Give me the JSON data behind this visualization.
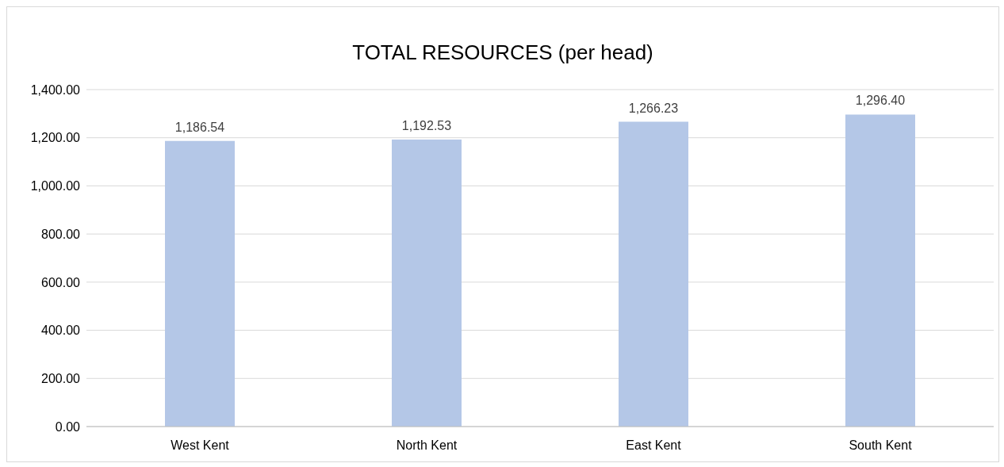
{
  "chart_data": {
    "type": "bar",
    "title": "TOTAL RESOURCES (per head)",
    "categories": [
      "West Kent",
      "North Kent",
      "East Kent",
      "South Kent"
    ],
    "values": [
      1186.54,
      1192.53,
      1266.23,
      1296.4
    ],
    "value_labels": [
      "1,186.54",
      "1,192.53",
      "1,266.23",
      "1,296.40"
    ],
    "color": "#b4c7e7",
    "ylim": [
      0,
      1400
    ],
    "yticks": [
      {
        "value": 0,
        "label": "0.00"
      },
      {
        "value": 200,
        "label": "200.00"
      },
      {
        "value": 400,
        "label": "400.00"
      },
      {
        "value": 600,
        "label": "600.00"
      },
      {
        "value": 800,
        "label": "800.00"
      },
      {
        "value": 1000,
        "label": "1,000.00"
      },
      {
        "value": 1200,
        "label": "1,200.00"
      },
      {
        "value": 1400,
        "label": "1,400.00"
      }
    ],
    "grid": "y"
  }
}
